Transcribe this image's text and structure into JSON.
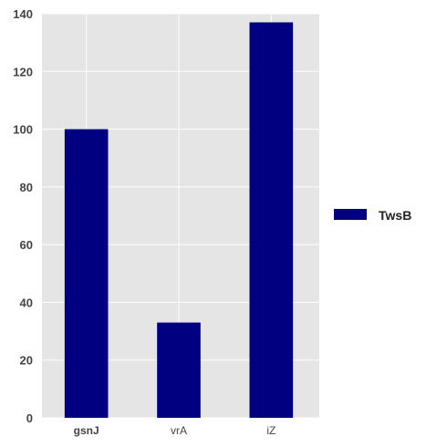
{
  "chart_data": {
    "type": "bar",
    "categories": [
      "gsnJ",
      "vrA",
      "iZ"
    ],
    "series": [
      {
        "name": "TwsB",
        "values": [
          100,
          33,
          137
        ],
        "color": "#000080"
      }
    ],
    "ylim": [
      0,
      140
    ],
    "yticks": [
      0,
      20,
      40,
      60,
      80,
      100,
      120,
      140
    ],
    "grid": true,
    "legend": "right",
    "background": "#e5e5e5",
    "grid_color": "#ffffff"
  }
}
